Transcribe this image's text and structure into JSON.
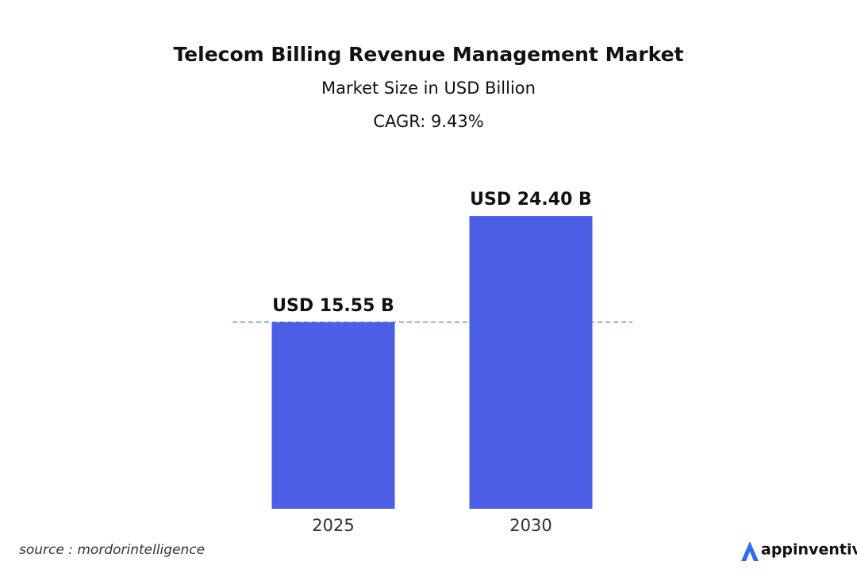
{
  "chart_data": {
    "type": "bar",
    "title": "Telecom Billing Revenue Management Market",
    "subtitle": "Market Size in USD Billion",
    "annotation": "CAGR: 9.43%",
    "categories": [
      "2025",
      "2030"
    ],
    "values": [
      15.55,
      24.4
    ],
    "value_labels": [
      "USD 15.55 B",
      "USD 24.40 B"
    ],
    "color": "#4a5fe6",
    "ylim": [
      0,
      25
    ],
    "source": "source : mordorintelligence",
    "brand": "appinventiv"
  }
}
